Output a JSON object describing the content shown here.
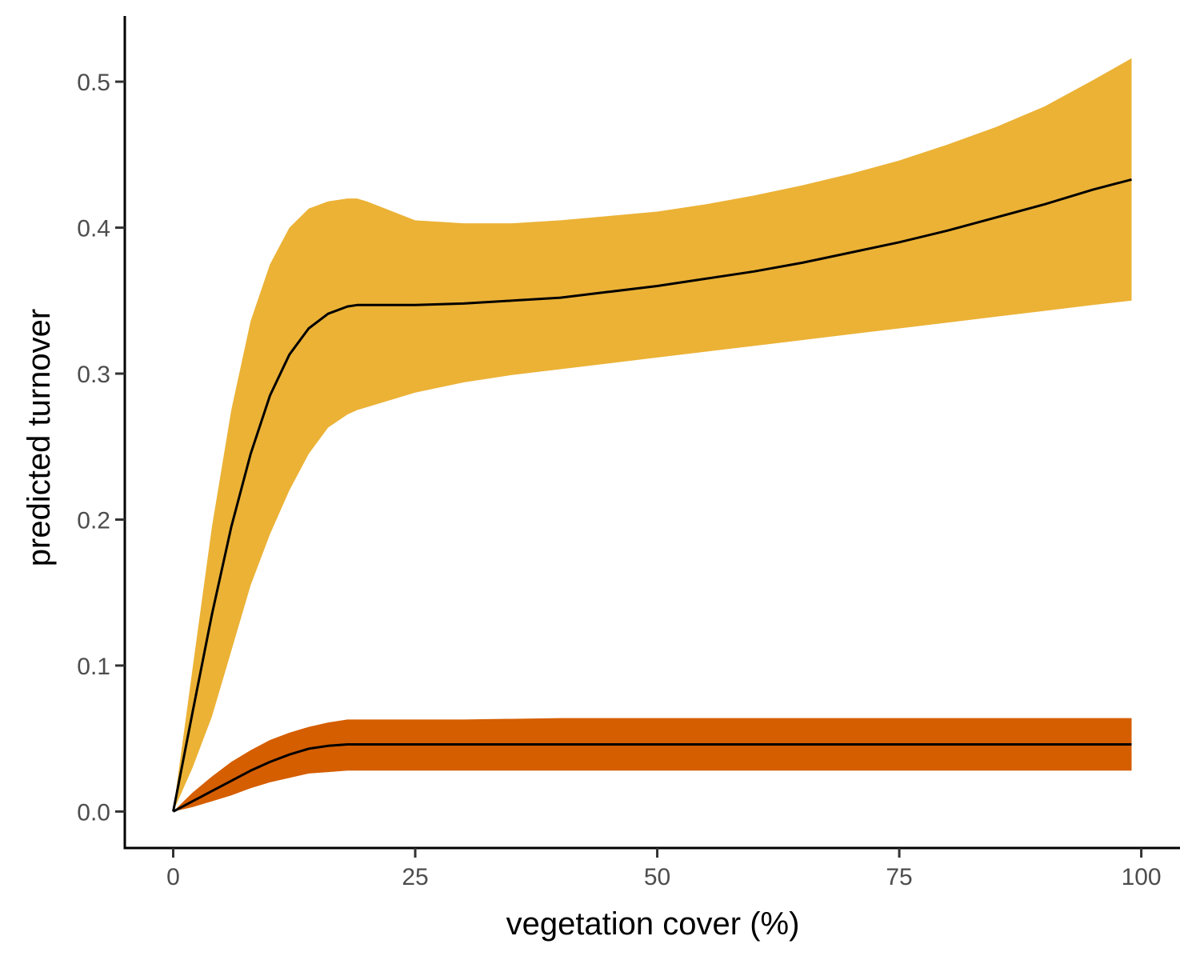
{
  "chart_data": {
    "type": "area",
    "title": "",
    "xlabel": "vegetation cover (%)",
    "ylabel": "predicted turnover",
    "xlim": [
      -5,
      104
    ],
    "ylim": [
      -0.025,
      0.545
    ],
    "x_ticks": [
      0,
      25,
      50,
      75,
      100
    ],
    "x_tick_labels": [
      "0",
      "25",
      "50",
      "75",
      "100"
    ],
    "y_ticks": [
      0.0,
      0.1,
      0.2,
      0.3,
      0.4,
      0.5
    ],
    "y_tick_labels": [
      "0.0",
      "0.1",
      "0.2",
      "0.3",
      "0.4",
      "0.5"
    ],
    "grid": false,
    "legend": "none",
    "line_color": "#000000",
    "series": [
      {
        "fill": "#EBB236",
        "x": [
          0,
          2,
          4,
          6,
          8,
          10,
          12,
          14,
          16,
          18,
          19,
          20,
          25,
          30,
          35,
          40,
          45,
          50,
          55,
          60,
          65,
          70,
          75,
          80,
          85,
          90,
          95,
          99
        ],
        "y": [
          0,
          0.068,
          0.135,
          0.195,
          0.245,
          0.285,
          0.313,
          0.331,
          0.341,
          0.346,
          0.347,
          0.347,
          0.347,
          0.348,
          0.35,
          0.352,
          0.356,
          0.36,
          0.365,
          0.37,
          0.376,
          0.383,
          0.39,
          0.398,
          0.407,
          0.416,
          0.426,
          0.433
        ],
        "lower": [
          0,
          0.03,
          0.065,
          0.11,
          0.155,
          0.19,
          0.22,
          0.245,
          0.263,
          0.272,
          0.275,
          0.277,
          0.287,
          0.294,
          0.299,
          0.303,
          0.307,
          0.311,
          0.315,
          0.319,
          0.323,
          0.327,
          0.331,
          0.335,
          0.339,
          0.343,
          0.347,
          0.35
        ],
        "upper": [
          0,
          0.098,
          0.195,
          0.275,
          0.336,
          0.375,
          0.4,
          0.413,
          0.418,
          0.42,
          0.42,
          0.418,
          0.405,
          0.403,
          0.403,
          0.405,
          0.408,
          0.411,
          0.416,
          0.422,
          0.429,
          0.437,
          0.446,
          0.457,
          0.469,
          0.483,
          0.501,
          0.516
        ]
      },
      {
        "fill": "#D55E00",
        "x": [
          0,
          2,
          4,
          6,
          8,
          10,
          12,
          14,
          16,
          18,
          20,
          25,
          30,
          40,
          50,
          60,
          70,
          80,
          90,
          99
        ],
        "y": [
          0,
          0.007,
          0.014,
          0.021,
          0.028,
          0.034,
          0.039,
          0.043,
          0.045,
          0.046,
          0.046,
          0.046,
          0.046,
          0.046,
          0.046,
          0.046,
          0.046,
          0.046,
          0.046,
          0.046
        ],
        "lower": [
          0,
          0.003,
          0.007,
          0.011,
          0.016,
          0.02,
          0.023,
          0.026,
          0.027,
          0.028,
          0.028,
          0.028,
          0.028,
          0.028,
          0.028,
          0.028,
          0.028,
          0.028,
          0.028,
          0.028
        ],
        "upper": [
          0,
          0.013,
          0.024,
          0.034,
          0.042,
          0.049,
          0.054,
          0.058,
          0.061,
          0.063,
          0.063,
          0.063,
          0.063,
          0.064,
          0.064,
          0.064,
          0.064,
          0.064,
          0.064,
          0.064
        ]
      }
    ]
  }
}
